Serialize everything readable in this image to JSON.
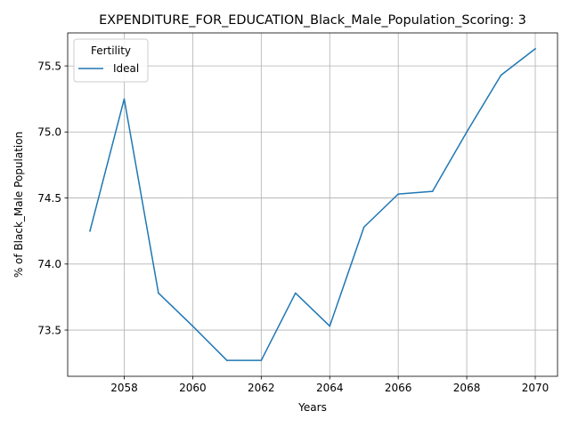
{
  "chart_data": {
    "type": "line",
    "title": "EXPENDITURE_FOR_EDUCATION_Black_Male_Population_Scoring: 3",
    "xlabel": "Years",
    "ylabel": "% of Black_Male Population",
    "xlim": [
      2056.35,
      2070.65
    ],
    "ylim": [
      73.15,
      75.75
    ],
    "x_ticks": [
      2058,
      2060,
      2062,
      2064,
      2066,
      2068,
      2070
    ],
    "y_ticks": [
      73.5,
      74.0,
      74.5,
      75.0,
      75.5
    ],
    "y_tick_labels": [
      "73.5",
      "74.0",
      "74.5",
      "75.0",
      "75.5"
    ],
    "grid": true,
    "legend": {
      "title": "Fertility",
      "placement": "top-left"
    },
    "series": [
      {
        "name": "Ideal",
        "color": "#1f77b4",
        "x": [
          2057,
          2058,
          2059,
          2060,
          2061,
          2062,
          2063,
          2064,
          2065,
          2066,
          2067,
          2068,
          2069,
          2070
        ],
        "y": [
          74.25,
          75.25,
          73.78,
          73.53,
          73.27,
          73.27,
          73.78,
          73.53,
          74.28,
          74.53,
          74.55,
          75.0,
          75.43,
          75.63
        ]
      }
    ]
  }
}
